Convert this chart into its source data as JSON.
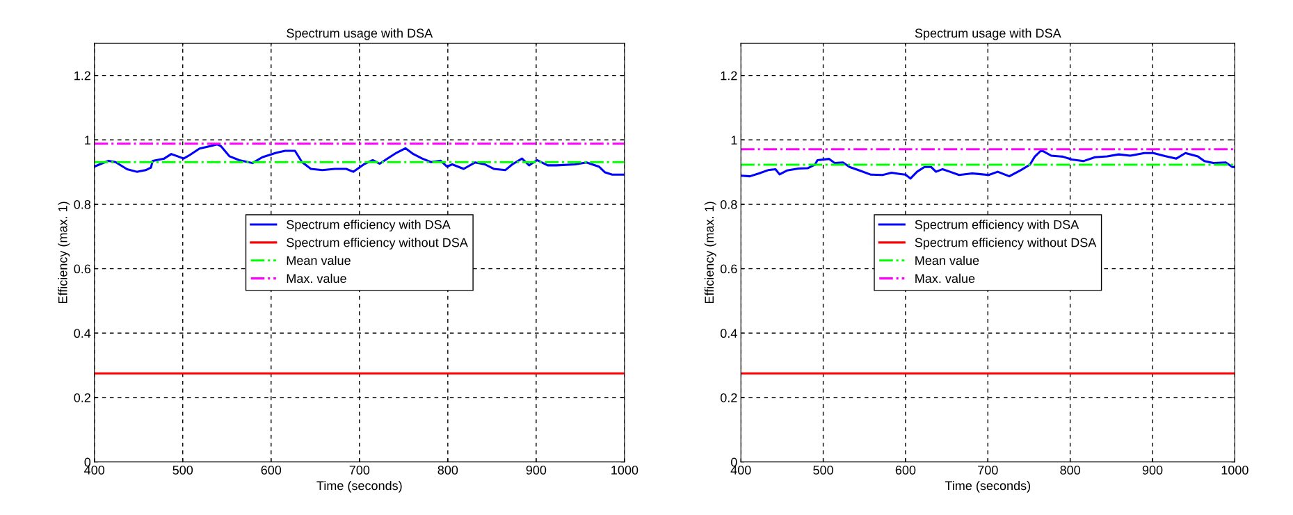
{
  "chart_data": [
    {
      "type": "line",
      "title": "Spectrum usage with DSA",
      "xlabel": "Time (seconds)",
      "ylabel": "Efficiency (max. 1)",
      "xlim": [
        400,
        1000
      ],
      "xticks": [
        400,
        500,
        600,
        700,
        800,
        900,
        1000
      ],
      "ylim": [
        0,
        1.3
      ],
      "yticks": [
        0,
        0.2,
        0.4,
        0.6,
        0.8,
        1,
        1.2
      ],
      "grid": true,
      "legend": "center",
      "marker": "none",
      "series": [
        {
          "name": "Spectrum efficiency with DSA",
          "color": "#0000ff",
          "line_style": "solid",
          "x": [
            400,
            406,
            416,
            424,
            437,
            448,
            458,
            464,
            466,
            479,
            487,
            501,
            508,
            519,
            532,
            539,
            543,
            553,
            564,
            579,
            590,
            598,
            606,
            616,
            627,
            635,
            645,
            658,
            672,
            685,
            693,
            705,
            715,
            723,
            734,
            742,
            752,
            761,
            771,
            781,
            792,
            799,
            805,
            818,
            831,
            842,
            852,
            865,
            873,
            884,
            892,
            901,
            913,
            923,
            944,
            957,
            971,
            978,
            986,
            1000
          ],
          "values": [
            0.917,
            0.924,
            0.935,
            0.931,
            0.909,
            0.901,
            0.906,
            0.914,
            0.935,
            0.942,
            0.956,
            0.942,
            0.953,
            0.973,
            0.981,
            0.986,
            0.981,
            0.949,
            0.937,
            0.928,
            0.946,
            0.953,
            0.96,
            0.966,
            0.966,
            0.931,
            0.91,
            0.906,
            0.91,
            0.91,
            0.901,
            0.924,
            0.937,
            0.926,
            0.946,
            0.96,
            0.974,
            0.956,
            0.942,
            0.931,
            0.935,
            0.917,
            0.924,
            0.91,
            0.93,
            0.924,
            0.91,
            0.906,
            0.924,
            0.942,
            0.921,
            0.937,
            0.921,
            0.921,
            0.924,
            0.93,
            0.917,
            0.899,
            0.892,
            0.892
          ]
        },
        {
          "name": "Spectrum efficiency without DSA",
          "color": "#ff0000",
          "line_style": "solid",
          "x": [
            400,
            1000
          ],
          "values": [
            0.275,
            0.275
          ]
        },
        {
          "name": "Mean value",
          "color": "#00ff00",
          "line_style": "dashdot",
          "x": [
            400,
            1000
          ],
          "values": [
            0.931,
            0.931
          ]
        },
        {
          "name": "Max. value",
          "color": "#ff00ff",
          "line_style": "dashdot",
          "x": [
            400,
            1000
          ],
          "values": [
            0.988,
            0.988
          ]
        }
      ]
    },
    {
      "type": "line",
      "title": "Spectrum usage with DSA",
      "xlabel": "Time (seconds)",
      "ylabel": "Efficiency (max. 1)",
      "xlim": [
        400,
        1000
      ],
      "xticks": [
        400,
        500,
        600,
        700,
        800,
        900,
        1000
      ],
      "ylim": [
        0,
        1.3
      ],
      "yticks": [
        0,
        0.2,
        0.4,
        0.6,
        0.8,
        1,
        1.2
      ],
      "grid": true,
      "legend": "center",
      "marker": "none",
      "series": [
        {
          "name": "Spectrum efficiency with DSA",
          "color": "#0000ff",
          "line_style": "solid",
          "x": [
            400,
            411,
            422,
            433,
            442,
            447,
            456,
            470,
            481,
            490,
            493,
            507,
            514,
            524,
            532,
            544,
            558,
            572,
            583,
            594,
            600,
            606,
            614,
            623,
            631,
            637,
            645,
            654,
            665,
            681,
            689,
            701,
            712,
            726,
            740,
            751,
            757,
            765,
            777,
            791,
            802,
            816,
            830,
            845,
            859,
            873,
            890,
            901,
            915,
            929,
            940,
            955,
            963,
            975,
            989,
            997,
            1000
          ],
          "values": [
            0.889,
            0.887,
            0.896,
            0.906,
            0.909,
            0.893,
            0.905,
            0.911,
            0.912,
            0.923,
            0.937,
            0.941,
            0.928,
            0.93,
            0.916,
            0.905,
            0.892,
            0.891,
            0.898,
            0.894,
            0.892,
            0.88,
            0.901,
            0.916,
            0.916,
            0.901,
            0.909,
            0.901,
            0.891,
            0.896,
            0.894,
            0.891,
            0.901,
            0.887,
            0.906,
            0.923,
            0.948,
            0.968,
            0.951,
            0.948,
            0.939,
            0.934,
            0.946,
            0.949,
            0.955,
            0.951,
            0.959,
            0.959,
            0.95,
            0.942,
            0.959,
            0.949,
            0.934,
            0.928,
            0.93,
            0.916,
            0.916
          ]
        },
        {
          "name": "Spectrum efficiency without DSA",
          "color": "#ff0000",
          "line_style": "solid",
          "x": [
            400,
            1000
          ],
          "values": [
            0.275,
            0.275
          ]
        },
        {
          "name": "Mean value",
          "color": "#00ff00",
          "line_style": "dashdot",
          "x": [
            400,
            1000
          ],
          "values": [
            0.923,
            0.923
          ]
        },
        {
          "name": "Max. value",
          "color": "#ff00ff",
          "line_style": "dashdot",
          "x": [
            400,
            1000
          ],
          "values": [
            0.971,
            0.971
          ]
        }
      ]
    }
  ]
}
